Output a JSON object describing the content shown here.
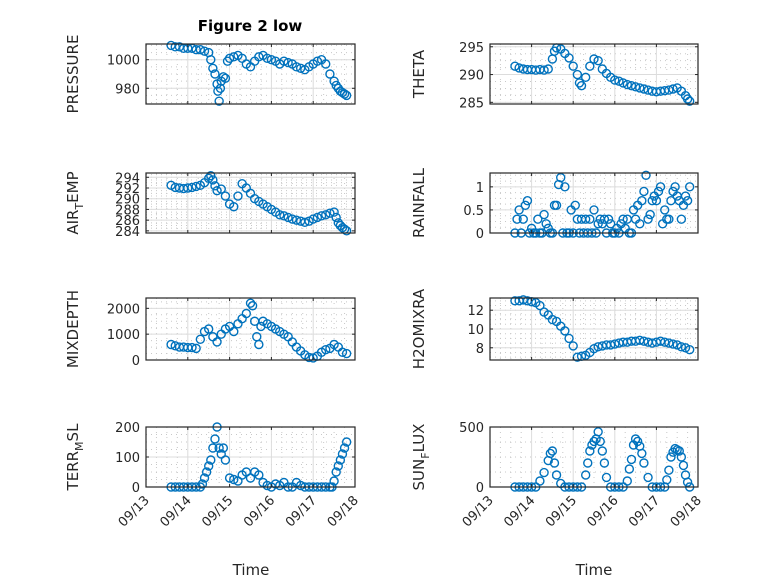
{
  "figure": {
    "title": "Figure 2 low",
    "marker_color": "#0072BD",
    "xlabel": "Time"
  },
  "chart_data": {
    "type": "scatter",
    "title": "Figure 2 low",
    "x_unit": "days since 09/13",
    "x_tick_labels": [
      "09/13",
      "09/14",
      "09/15",
      "09/16",
      "09/17",
      "09/18"
    ],
    "xlim": [
      0,
      5
    ],
    "grid": "on (major + minor dotted)",
    "panels": [
      {
        "id": "pressure",
        "ylabel": "PRESSURE",
        "ylabel_sub": "",
        "ylim": [
          969,
          1011
        ],
        "yticks": [
          980,
          1000
        ],
        "ytick_labels": [
          "980",
          "1000"
        ],
        "x": [
          0.6,
          0.7,
          0.8,
          0.9,
          1.0,
          1.1,
          1.2,
          1.3,
          1.4,
          1.5,
          1.55,
          1.6,
          1.65,
          1.7,
          1.72,
          1.75,
          1.78,
          1.8,
          1.85,
          1.9,
          1.95,
          2.0,
          2.1,
          2.2,
          2.3,
          2.4,
          2.5,
          2.6,
          2.7,
          2.8,
          2.9,
          3.0,
          3.1,
          3.2,
          3.3,
          3.4,
          3.5,
          3.6,
          3.7,
          3.8,
          3.9,
          4.0,
          4.1,
          4.2,
          4.3,
          4.4,
          4.5,
          4.55,
          4.6,
          4.65,
          4.7,
          4.75,
          4.8
        ],
        "y": [
          1010,
          1009,
          1009,
          1008,
          1008,
          1008,
          1007,
          1007,
          1006,
          1005,
          1000,
          994,
          990,
          983,
          978,
          971,
          980,
          985,
          988,
          987,
          999,
          1001,
          1002,
          1003,
          1001,
          997,
          995,
          999,
          1002,
          1003,
          1001,
          1000,
          999,
          997,
          999,
          998,
          997,
          995,
          994,
          993,
          995,
          997,
          999,
          1000,
          997,
          990,
          985,
          982,
          980,
          978,
          977,
          976,
          975
        ]
      },
      {
        "id": "theta",
        "ylabel": "THETA",
        "ylabel_sub": "",
        "ylim": [
          284.7,
          295.5
        ],
        "yticks": [
          285,
          290,
          295
        ],
        "ytick_labels": [
          "285",
          "290",
          "295"
        ],
        "x": [
          0.6,
          0.7,
          0.8,
          0.9,
          1.0,
          1.1,
          1.2,
          1.3,
          1.4,
          1.5,
          1.55,
          1.6,
          1.7,
          1.8,
          1.9,
          2.0,
          2.1,
          2.15,
          2.2,
          2.3,
          2.4,
          2.5,
          2.6,
          2.7,
          2.8,
          2.9,
          3.0,
          3.1,
          3.2,
          3.3,
          3.4,
          3.5,
          3.6,
          3.7,
          3.8,
          3.9,
          4.0,
          4.1,
          4.2,
          4.3,
          4.4,
          4.5,
          4.6,
          4.7,
          4.75,
          4.8
        ],
        "y": [
          291.5,
          291.2,
          291.0,
          290.9,
          290.9,
          290.8,
          290.9,
          290.8,
          291.0,
          292.8,
          294.2,
          294.8,
          294.6,
          293.8,
          293.0,
          291.5,
          290.0,
          288.5,
          288.0,
          289.5,
          291.5,
          292.8,
          292.5,
          291.0,
          290.2,
          289.5,
          289.0,
          288.8,
          288.5,
          288.2,
          288.0,
          287.8,
          287.6,
          287.4,
          287.2,
          287.0,
          286.9,
          287.0,
          287.1,
          287.2,
          287.4,
          287.6,
          287.0,
          286.2,
          285.6,
          285.2
        ]
      },
      {
        "id": "air_temp",
        "ylabel": "AIR",
        "ylabel_sub": "T",
        "ylabel_tail": "EMP",
        "ylim": [
          283.6,
          294.8
        ],
        "yticks": [
          284,
          286,
          288,
          290,
          292,
          294
        ],
        "ytick_labels": [
          "284",
          "286",
          "288",
          "290",
          "292",
          "294"
        ],
        "x": [
          0.6,
          0.7,
          0.8,
          0.9,
          1.0,
          1.1,
          1.2,
          1.3,
          1.4,
          1.5,
          1.55,
          1.6,
          1.65,
          1.7,
          1.8,
          1.9,
          2.0,
          2.1,
          2.2,
          2.3,
          2.4,
          2.5,
          2.6,
          2.7,
          2.8,
          2.9,
          3.0,
          3.1,
          3.2,
          3.3,
          3.4,
          3.5,
          3.6,
          3.7,
          3.8,
          3.9,
          4.0,
          4.1,
          4.2,
          4.3,
          4.4,
          4.5,
          4.55,
          4.6,
          4.65,
          4.7,
          4.75,
          4.8
        ],
        "y": [
          292.5,
          292.1,
          292.0,
          291.9,
          292.0,
          292.1,
          292.3,
          292.5,
          293.0,
          293.8,
          294.3,
          293.5,
          292.4,
          291.5,
          291.8,
          290.5,
          289.0,
          288.5,
          290.5,
          292.8,
          292.0,
          291.0,
          290.0,
          289.5,
          289.0,
          288.5,
          288.0,
          287.5,
          287.0,
          286.8,
          286.5,
          286.2,
          286.0,
          285.8,
          285.6,
          285.8,
          286.2,
          286.5,
          286.8,
          287.0,
          287.3,
          287.5,
          286.5,
          285.5,
          285.0,
          284.6,
          284.3,
          284.0
        ]
      },
      {
        "id": "rainfall",
        "ylabel": "RAINFALL",
        "ylabel_sub": "",
        "ylim": [
          0,
          1.3
        ],
        "yticks": [
          0,
          0.5,
          1
        ],
        "ytick_labels": [
          "0",
          "0.5",
          "1"
        ],
        "x": [
          0.6,
          0.65,
          0.7,
          0.75,
          0.8,
          0.85,
          0.9,
          0.95,
          1.0,
          1.05,
          1.1,
          1.15,
          1.2,
          1.25,
          1.3,
          1.35,
          1.4,
          1.45,
          1.5,
          1.55,
          1.6,
          1.65,
          1.7,
          1.75,
          1.8,
          1.85,
          1.9,
          1.95,
          2.0,
          2.05,
          2.1,
          2.15,
          2.2,
          2.25,
          2.3,
          2.35,
          2.4,
          2.45,
          2.5,
          2.55,
          2.6,
          2.65,
          2.7,
          2.75,
          2.8,
          2.85,
          2.9,
          2.95,
          3.0,
          3.05,
          3.1,
          3.15,
          3.2,
          3.25,
          3.3,
          3.35,
          3.4,
          3.45,
          3.5,
          3.55,
          3.6,
          3.65,
          3.7,
          3.75,
          3.8,
          3.85,
          3.9,
          3.95,
          4.0,
          4.05,
          4.1,
          4.15,
          4.2,
          4.25,
          4.3,
          4.35,
          4.4,
          4.45,
          4.5,
          4.55,
          4.6,
          4.65,
          4.7,
          4.75,
          4.8
        ],
        "y": [
          0,
          0.3,
          0.5,
          0,
          0.3,
          0.6,
          0.7,
          0,
          0.1,
          0,
          0,
          0.3,
          0,
          0,
          0.4,
          0.2,
          0.1,
          0,
          0,
          0.6,
          0.6,
          1.05,
          1.2,
          0,
          1,
          0,
          0,
          0.5,
          0,
          0.6,
          0.3,
          0,
          0.3,
          0,
          0.3,
          0,
          0.3,
          0,
          0.5,
          0,
          0.2,
          0.3,
          0.2,
          0.3,
          0,
          0.3,
          0.2,
          0,
          0,
          0.1,
          0,
          0.2,
          0.3,
          0.1,
          0.3,
          0,
          0,
          0.5,
          0.3,
          0.6,
          0.2,
          0.7,
          0.9,
          1.25,
          0.3,
          0.4,
          0.7,
          0.8,
          0.7,
          0.9,
          1.0,
          0.2,
          0.5,
          0.3,
          0.3,
          0.7,
          0.9,
          1.0,
          0.8,
          0.7,
          0.3,
          0.6,
          0.8,
          0.7,
          1.0
        ]
      },
      {
        "id": "mixdepth",
        "ylabel": "MIXDEPTH",
        "ylabel_sub": "",
        "ylim": [
          0,
          2400
        ],
        "yticks": [
          0,
          1000,
          2000
        ],
        "ytick_labels": [
          "0",
          "1000",
          "2000"
        ],
        "x": [
          0.6,
          0.7,
          0.8,
          0.9,
          1.0,
          1.1,
          1.2,
          1.3,
          1.4,
          1.5,
          1.6,
          1.7,
          1.8,
          1.9,
          2.0,
          2.1,
          2.2,
          2.3,
          2.4,
          2.5,
          2.55,
          2.6,
          2.65,
          2.7,
          2.75,
          2.8,
          2.9,
          3.0,
          3.1,
          3.2,
          3.3,
          3.4,
          3.5,
          3.6,
          3.7,
          3.8,
          3.9,
          4.0,
          4.1,
          4.2,
          4.3,
          4.4,
          4.5,
          4.6,
          4.7,
          4.8
        ],
        "y": [
          600,
          550,
          500,
          500,
          480,
          480,
          450,
          800,
          1100,
          1200,
          900,
          700,
          1000,
          1200,
          1300,
          1100,
          1400,
          1600,
          1800,
          2200,
          2100,
          1500,
          900,
          600,
          1300,
          1500,
          1400,
          1300,
          1200,
          1100,
          1000,
          900,
          700,
          500,
          350,
          200,
          100,
          80,
          150,
          300,
          400,
          450,
          600,
          500,
          300,
          250
        ]
      },
      {
        "id": "h2omixra",
        "ylabel": "H2OMIXRA",
        "ylabel_sub": "",
        "ylim": [
          6.7,
          13.3
        ],
        "yticks": [
          8,
          10,
          12
        ],
        "ytick_labels": [
          "8",
          "10",
          "12"
        ],
        "x": [
          0.6,
          0.7,
          0.8,
          0.9,
          1.0,
          1.1,
          1.2,
          1.3,
          1.4,
          1.5,
          1.6,
          1.7,
          1.8,
          1.9,
          2.0,
          2.1,
          2.2,
          2.3,
          2.4,
          2.5,
          2.6,
          2.7,
          2.8,
          2.9,
          3.0,
          3.1,
          3.2,
          3.3,
          3.4,
          3.5,
          3.6,
          3.7,
          3.8,
          3.9,
          4.0,
          4.1,
          4.2,
          4.3,
          4.4,
          4.5,
          4.6,
          4.7,
          4.8
        ],
        "y": [
          13.0,
          13.0,
          13.1,
          13.0,
          12.9,
          12.8,
          12.5,
          11.8,
          11.5,
          11.0,
          10.8,
          10.3,
          9.8,
          9.0,
          8.2,
          7.0,
          7.1,
          7.2,
          7.5,
          7.9,
          8.1,
          8.2,
          8.3,
          8.3,
          8.4,
          8.5,
          8.6,
          8.6,
          8.7,
          8.7,
          8.8,
          8.7,
          8.6,
          8.5,
          8.6,
          8.7,
          8.6,
          8.5,
          8.4,
          8.3,
          8.1,
          8.0,
          7.8
        ]
      },
      {
        "id": "terr_msl",
        "ylabel": "TERR",
        "ylabel_sub": "M",
        "ylabel_tail": "SL",
        "ylim": [
          0,
          200
        ],
        "yticks": [
          0,
          100,
          200
        ],
        "ytick_labels": [
          "0",
          "100",
          "200"
        ],
        "x": [
          0.6,
          0.7,
          0.8,
          0.9,
          1.0,
          1.1,
          1.2,
          1.3,
          1.35,
          1.4,
          1.45,
          1.5,
          1.55,
          1.6,
          1.65,
          1.7,
          1.75,
          1.8,
          1.85,
          1.9,
          2.0,
          2.1,
          2.2,
          2.3,
          2.4,
          2.5,
          2.6,
          2.7,
          2.8,
          2.9,
          3.0,
          3.1,
          3.2,
          3.3,
          3.4,
          3.5,
          3.6,
          3.7,
          3.8,
          3.9,
          4.0,
          4.1,
          4.2,
          4.3,
          4.4,
          4.45,
          4.5,
          4.55,
          4.6,
          4.65,
          4.7,
          4.75,
          4.8
        ],
        "y": [
          0,
          0,
          0,
          0,
          0,
          0,
          0,
          0,
          10,
          30,
          50,
          70,
          90,
          130,
          160,
          200,
          130,
          110,
          130,
          90,
          30,
          25,
          20,
          40,
          50,
          30,
          50,
          40,
          15,
          5,
          0,
          10,
          5,
          15,
          0,
          0,
          15,
          5,
          0,
          0,
          0,
          0,
          0,
          0,
          0,
          0,
          20,
          50,
          70,
          90,
          110,
          130,
          150
        ]
      },
      {
        "id": "sun_flux",
        "ylabel": "SUN",
        "ylabel_sub": "F",
        "ylabel_tail": "LUX",
        "ylim": [
          0,
          500
        ],
        "yticks": [
          0,
          500
        ],
        "ytick_labels": [
          "0",
          "500"
        ],
        "x": [
          0.6,
          0.7,
          0.8,
          0.9,
          1.0,
          1.1,
          1.2,
          1.3,
          1.4,
          1.45,
          1.5,
          1.55,
          1.6,
          1.7,
          1.8,
          1.9,
          2.0,
          2.1,
          2.2,
          2.3,
          2.35,
          2.4,
          2.45,
          2.5,
          2.55,
          2.6,
          2.65,
          2.7,
          2.75,
          2.8,
          2.9,
          3.0,
          3.1,
          3.2,
          3.3,
          3.35,
          3.4,
          3.45,
          3.5,
          3.55,
          3.6,
          3.65,
          3.7,
          3.8,
          3.9,
          4.0,
          4.1,
          4.2,
          4.25,
          4.3,
          4.35,
          4.4,
          4.45,
          4.5,
          4.55,
          4.6,
          4.65,
          4.7,
          4.75,
          4.8
        ],
        "y": [
          0,
          0,
          0,
          0,
          0,
          0,
          50,
          120,
          220,
          280,
          300,
          200,
          100,
          30,
          0,
          0,
          0,
          0,
          0,
          100,
          200,
          300,
          350,
          380,
          400,
          460,
          380,
          300,
          200,
          80,
          0,
          0,
          0,
          0,
          50,
          150,
          230,
          350,
          400,
          380,
          340,
          280,
          200,
          80,
          0,
          0,
          0,
          0,
          60,
          140,
          250,
          290,
          320,
          310,
          300,
          250,
          180,
          100,
          40,
          0
        ]
      }
    ]
  }
}
